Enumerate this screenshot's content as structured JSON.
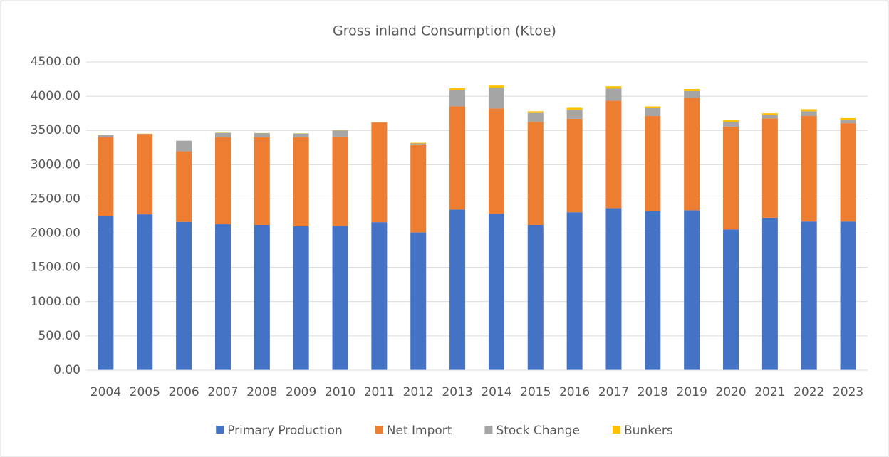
{
  "chart_data": {
    "type": "stacked_bar",
    "title": "Gross inland Consumption (Ktoe)",
    "categories": [
      "2004",
      "2005",
      "2006",
      "2007",
      "2008",
      "2009",
      "2010",
      "2011",
      "2012",
      "2013",
      "2014",
      "2015",
      "2016",
      "2017",
      "2018",
      "2019",
      "2020",
      "2021",
      "2022",
      "2023"
    ],
    "series": [
      {
        "name": "Primary Production",
        "color": "#4472c4",
        "values": [
          2255,
          2275,
          2165,
          2130,
          2120,
          2100,
          2105,
          2160,
          2010,
          2345,
          2285,
          2120,
          2305,
          2365,
          2325,
          2335,
          2055,
          2225,
          2170,
          2170
        ]
      },
      {
        "name": "Net Import",
        "color": "#ed7d31",
        "values": [
          1150,
          1170,
          1030,
          1270,
          1280,
          1300,
          1305,
          1455,
          1285,
          1505,
          1535,
          1505,
          1365,
          1570,
          1385,
          1640,
          1500,
          1450,
          1540,
          1435
        ]
      },
      {
        "name": "Stock Change",
        "color": "#a5a5a5",
        "values": [
          25,
          5,
          155,
          65,
          60,
          55,
          90,
          5,
          15,
          235,
          305,
          130,
          130,
          175,
          115,
          100,
          70,
          50,
          70,
          50
        ]
      },
      {
        "name": "Bunkers",
        "color": "#ffc000",
        "values": [
          5,
          3,
          0,
          3,
          3,
          3,
          3,
          3,
          10,
          30,
          30,
          25,
          30,
          35,
          25,
          30,
          25,
          25,
          30,
          25
        ]
      }
    ],
    "ylim": [
      0,
      4500
    ],
    "yticks": [
      {
        "value": 0,
        "label": "0.00"
      },
      {
        "value": 500,
        "label": "500.00"
      },
      {
        "value": 1000,
        "label": "1000.00"
      },
      {
        "value": 1500,
        "label": "1500.00"
      },
      {
        "value": 2000,
        "label": "2000.00"
      },
      {
        "value": 2500,
        "label": "2500.00"
      },
      {
        "value": 3000,
        "label": "3000.00"
      },
      {
        "value": 3500,
        "label": "3500.00"
      },
      {
        "value": 4000,
        "label": "4000.00"
      },
      {
        "value": 4500,
        "label": "4500.00"
      }
    ],
    "grid": true,
    "legend": "bottom"
  }
}
